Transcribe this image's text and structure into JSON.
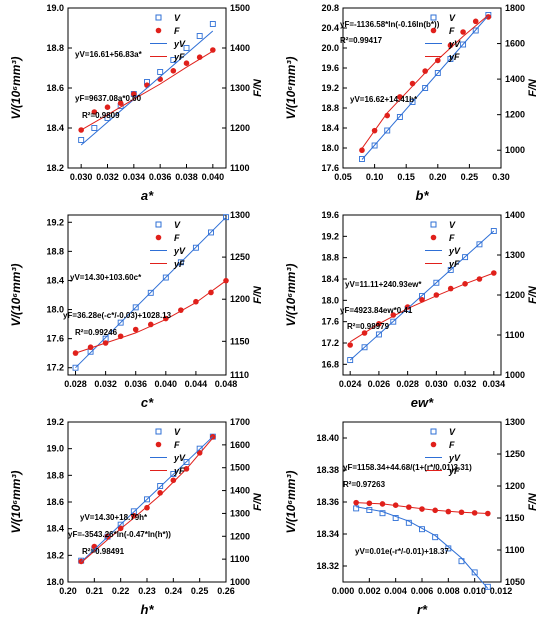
{
  "colors": {
    "v": "#2e6fd6",
    "f": "#e0201b",
    "axis": "#000000"
  },
  "chart_data": [
    {
      "type": "scatter",
      "xlabel": "a*",
      "ylabel_left": "V/(10⁶mm³)",
      "ylabel_right": "F/N",
      "xlim": [
        0.029,
        0.041
      ],
      "xticks": [
        "0.030",
        "0.032",
        "0.034",
        "0.036",
        "0.038",
        "0.040"
      ],
      "ylim_left": [
        18.2,
        19.0
      ],
      "yticks_left": [
        "18.2",
        "18.4",
        "18.6",
        "18.8",
        "19.0"
      ],
      "ylim_right": [
        1100,
        1500
      ],
      "yticks_right": [
        "1100",
        "1200",
        "1300",
        "1400",
        "1500"
      ],
      "legend": [
        "V",
        "F",
        "yV",
        "yF"
      ],
      "series": [
        {
          "name": "V",
          "marker": "square",
          "axis": "left",
          "x": [
            0.03,
            0.031,
            0.032,
            0.033,
            0.034,
            0.035,
            0.036,
            0.037,
            0.038,
            0.039,
            0.04
          ],
          "y": [
            18.34,
            18.4,
            18.45,
            18.51,
            18.57,
            18.63,
            18.68,
            18.74,
            18.8,
            18.86,
            18.92
          ]
        },
        {
          "name": "F",
          "marker": "circle",
          "axis": "right",
          "x": [
            0.03,
            0.031,
            0.032,
            0.033,
            0.034,
            0.035,
            0.036,
            0.037,
            0.038,
            0.039,
            0.04
          ],
          "y": [
            1195,
            1240,
            1252,
            1262,
            1285,
            1307,
            1322,
            1343,
            1362,
            1377,
            1395
          ]
        },
        {
          "name": "yV",
          "type": "line",
          "axis": "left",
          "x": [
            0.03,
            0.04
          ],
          "y": [
            18.315,
            18.885
          ]
        },
        {
          "name": "yF",
          "type": "line",
          "axis": "right",
          "x": [
            0.03,
            0.032,
            0.034,
            0.036,
            0.038,
            0.04
          ],
          "y": [
            1195,
            1233,
            1272,
            1310,
            1352,
            1392
          ]
        }
      ],
      "annotations": [
        "yV=16.61+56.83a*",
        "yF=9637.08a*0.60",
        "R²=0.9809"
      ]
    },
    {
      "type": "scatter",
      "xlabel": "b*",
      "ylabel_left": "V/(10⁶mm³)",
      "ylabel_right": "F/N",
      "xlim": [
        0.05,
        0.3
      ],
      "xticks": [
        "0.05",
        "0.10",
        "0.15",
        "0.20",
        "0.25",
        "0.30"
      ],
      "ylim_left": [
        17.6,
        20.8
      ],
      "yticks_left": [
        "17.6",
        "18.0",
        "18.4",
        "18.8",
        "19.2",
        "19.6",
        "20.0",
        "20.4",
        "20.8"
      ],
      "ylim_right": [
        900,
        1800
      ],
      "yticks_right": [
        "1000",
        "1200",
        "1400",
        "1600",
        "1800"
      ],
      "legend": [
        "V",
        "F",
        "yV",
        "yF"
      ],
      "series": [
        {
          "name": "V",
          "marker": "square",
          "axis": "left",
          "x": [
            0.08,
            0.1,
            0.12,
            0.14,
            0.16,
            0.18,
            0.2,
            0.22,
            0.24,
            0.26,
            0.28
          ],
          "y": [
            17.78,
            18.05,
            18.35,
            18.62,
            18.92,
            19.2,
            19.5,
            19.78,
            20.07,
            20.35,
            20.66
          ]
        },
        {
          "name": "F",
          "marker": "circle",
          "axis": "right",
          "x": [
            0.08,
            0.1,
            0.12,
            0.14,
            0.16,
            0.18,
            0.2,
            0.22,
            0.24,
            0.26,
            0.28
          ],
          "y": [
            1000,
            1110,
            1195,
            1300,
            1375,
            1445,
            1505,
            1590,
            1665,
            1725,
            1750
          ]
        },
        {
          "name": "yV",
          "type": "line",
          "axis": "left",
          "x": [
            0.08,
            0.28
          ],
          "y": [
            17.77,
            20.65
          ]
        },
        {
          "name": "yF",
          "type": "line",
          "axis": "right",
          "x": [
            0.08,
            0.12,
            0.16,
            0.2,
            0.24,
            0.28
          ],
          "y": [
            1010,
            1210,
            1360,
            1510,
            1640,
            1760
          ]
        }
      ],
      "annotations": [
        "yF=-1136.58*ln(-0.16ln(b*))",
        "R²=0.99417",
        "yV=16.62+14.41b*"
      ]
    },
    {
      "type": "scatter",
      "xlabel": "c*",
      "ylabel_left": "V/(10⁶mm³)",
      "ylabel_right": "F/N",
      "xlim": [
        0.027,
        0.048
      ],
      "xticks": [
        "0.028",
        "0.032",
        "0.036",
        "0.040",
        "0.044",
        "0.048"
      ],
      "ylim_left": [
        17.1,
        19.3
      ],
      "yticks_left": [
        "17.2",
        "17.6",
        "18.0",
        "18.4",
        "18.8",
        "19.2"
      ],
      "ylim_right": [
        1110,
        1300
      ],
      "yticks_right": [
        "1110",
        "1150",
        "1200",
        "1250",
        "1300"
      ],
      "legend": [
        "V",
        "F",
        "yV",
        "yF"
      ],
      "series": [
        {
          "name": "V",
          "marker": "square",
          "axis": "left",
          "x": [
            0.028,
            0.03,
            0.032,
            0.034,
            0.036,
            0.038,
            0.04,
            0.042,
            0.044,
            0.046,
            0.048
          ],
          "y": [
            17.2,
            17.42,
            17.6,
            17.82,
            18.03,
            18.23,
            18.44,
            18.65,
            18.85,
            19.06,
            19.27
          ]
        },
        {
          "name": "F",
          "marker": "circle",
          "axis": "right",
          "x": [
            0.028,
            0.03,
            0.032,
            0.034,
            0.036,
            0.038,
            0.04,
            0.042,
            0.044,
            0.046,
            0.048
          ],
          "y": [
            1136,
            1143,
            1148,
            1156,
            1164,
            1170,
            1177,
            1187,
            1197,
            1208,
            1222
          ]
        },
        {
          "name": "yV",
          "type": "line",
          "axis": "left",
          "x": [
            0.028,
            0.048
          ],
          "y": [
            17.2,
            19.27
          ]
        },
        {
          "name": "yF",
          "type": "line",
          "axis": "right",
          "x": [
            0.028,
            0.032,
            0.036,
            0.04,
            0.044,
            0.048
          ],
          "y": [
            1136,
            1148,
            1160,
            1176,
            1196,
            1222
          ]
        }
      ],
      "annotations": [
        "yV=14.30+103.60c*",
        "yF=36.28e(-c*/-0.03)+1028.13",
        "R²=0.99246"
      ]
    },
    {
      "type": "scatter",
      "xlabel": "ew*",
      "ylabel_left": "V/(10⁶mm³)",
      "ylabel_right": "F/N",
      "xlim": [
        0.0235,
        0.0345
      ],
      "xticks": [
        "0.024",
        "0.026",
        "0.028",
        "0.030",
        "0.032",
        "0.034"
      ],
      "ylim_left": [
        16.6,
        19.6
      ],
      "yticks_left": [
        "16.8",
        "17.2",
        "17.6",
        "18.0",
        "18.4",
        "18.8",
        "19.2",
        "19.6"
      ],
      "ylim_right": [
        1000,
        1400
      ],
      "yticks_right": [
        "1000",
        "1100",
        "1200",
        "1300",
        "1400"
      ],
      "legend": [
        "V",
        "F",
        "yV",
        "yF"
      ],
      "series": [
        {
          "name": "V",
          "marker": "square",
          "axis": "left",
          "x": [
            0.024,
            0.025,
            0.026,
            0.027,
            0.028,
            0.029,
            0.03,
            0.031,
            0.032,
            0.033,
            0.034
          ],
          "y": [
            16.88,
            17.12,
            17.36,
            17.6,
            17.84,
            18.08,
            18.33,
            18.57,
            18.81,
            19.05,
            19.3
          ]
        },
        {
          "name": "F",
          "marker": "circle",
          "axis": "right",
          "x": [
            0.024,
            0.025,
            0.026,
            0.027,
            0.028,
            0.029,
            0.03,
            0.031,
            0.032,
            0.033,
            0.034
          ],
          "y": [
            1075,
            1105,
            1128,
            1150,
            1170,
            1188,
            1200,
            1216,
            1228,
            1240,
            1255
          ]
        },
        {
          "name": "yV",
          "type": "line",
          "axis": "left",
          "x": [
            0.024,
            0.034
          ],
          "y": [
            16.88,
            19.3
          ]
        },
        {
          "name": "yF",
          "type": "line",
          "axis": "right",
          "x": [
            0.024,
            0.026,
            0.028,
            0.03,
            0.032,
            0.034
          ],
          "y": [
            1083,
            1128,
            1166,
            1198,
            1228,
            1255
          ]
        }
      ],
      "annotations": [
        "yV=11.11+240.93ew*",
        "yF=4923.84ew*0.41",
        "R²=0.98979"
      ]
    },
    {
      "type": "scatter",
      "xlabel": "h*",
      "ylabel_left": "V/(10⁶mm³)",
      "ylabel_right": "F/N",
      "xlim": [
        0.2,
        0.26
      ],
      "xticks": [
        "0.20",
        "0.21",
        "0.22",
        "0.23",
        "0.24",
        "0.25",
        "0.26"
      ],
      "ylim_left": [
        18.0,
        19.2
      ],
      "yticks_left": [
        "18.0",
        "18.2",
        "18.4",
        "18.6",
        "18.8",
        "19.0",
        "19.2"
      ],
      "ylim_right": [
        1000,
        1700
      ],
      "yticks_right": [
        "1000",
        "1100",
        "1200",
        "1300",
        "1400",
        "1500",
        "1600",
        "1700"
      ],
      "legend": [
        "V",
        "F",
        "yV",
        "yF"
      ],
      "series": [
        {
          "name": "V",
          "marker": "square",
          "axis": "left",
          "x": [
            0.205,
            0.21,
            0.215,
            0.22,
            0.225,
            0.23,
            0.235,
            0.24,
            0.245,
            0.25,
            0.255
          ],
          "y": [
            18.16,
            18.25,
            18.34,
            18.43,
            18.53,
            18.62,
            18.72,
            18.81,
            18.9,
            19.0,
            19.09
          ]
        },
        {
          "name": "F",
          "marker": "circle",
          "axis": "right",
          "x": [
            0.205,
            0.21,
            0.215,
            0.22,
            0.225,
            0.23,
            0.235,
            0.24,
            0.245,
            0.25,
            0.255
          ],
          "y": [
            1090,
            1155,
            1200,
            1235,
            1290,
            1325,
            1390,
            1445,
            1495,
            1565,
            1635
          ]
        },
        {
          "name": "yV",
          "type": "line",
          "axis": "left",
          "x": [
            0.205,
            0.255
          ],
          "y": [
            18.15,
            19.09
          ]
        },
        {
          "name": "yF",
          "type": "line",
          "axis": "right",
          "x": [
            0.205,
            0.215,
            0.225,
            0.235,
            0.245,
            0.255
          ],
          "y": [
            1085,
            1185,
            1280,
            1380,
            1495,
            1630
          ]
        }
      ],
      "annotations": [
        "yV=14.30+18.79h*",
        "yF=-3543.26*ln(-0.47*ln(h*))",
        "R²=0.98491"
      ]
    },
    {
      "type": "scatter",
      "xlabel": "r*",
      "ylabel_left": "V/(10⁶mm³)",
      "ylabel_right": "F/N",
      "xlim": [
        0.0,
        0.012
      ],
      "xticks": [
        "0.000",
        "0.002",
        "0.004",
        "0.006",
        "0.008",
        "0.010",
        "0.012"
      ],
      "ylim_left": [
        18.31,
        18.41
      ],
      "yticks_left": [
        "18.32",
        "18.34",
        "18.36",
        "18.38",
        "18.40"
      ],
      "ylim_right": [
        1050,
        1300
      ],
      "yticks_right": [
        "1050",
        "1100",
        "1150",
        "1200",
        "1250",
        "1300"
      ],
      "legend": [
        "V",
        "F",
        "yV",
        "yF"
      ],
      "series": [
        {
          "name": "V",
          "marker": "square",
          "axis": "left",
          "x": [
            0.001,
            0.002,
            0.003,
            0.004,
            0.005,
            0.006,
            0.007,
            0.008,
            0.009,
            0.01,
            0.011
          ],
          "y": [
            18.356,
            18.355,
            18.353,
            18.35,
            18.347,
            18.343,
            18.338,
            18.331,
            18.323,
            18.316,
            18.307
          ]
        },
        {
          "name": "F",
          "marker": "circle",
          "axis": "right",
          "x": [
            0.001,
            0.002,
            0.003,
            0.004,
            0.005,
            0.006,
            0.007,
            0.008,
            0.009,
            0.01,
            0.011
          ],
          "y": [
            1174,
            1173,
            1172,
            1170,
            1167,
            1164,
            1162,
            1160,
            1159,
            1158,
            1157
          ]
        },
        {
          "name": "yV",
          "type": "line",
          "axis": "left",
          "x": [
            0.001,
            0.003,
            0.005,
            0.007,
            0.009,
            0.011
          ],
          "y": [
            18.357,
            18.354,
            18.348,
            18.339,
            18.325,
            18.306
          ]
        },
        {
          "name": "yF",
          "type": "line",
          "axis": "right",
          "x": [
            0.001,
            0.003,
            0.005,
            0.007,
            0.009,
            0.011
          ],
          "y": [
            1174,
            1172,
            1167,
            1162,
            1159,
            1157
          ]
        }
      ],
      "annotations": [
        "yF=1158.34+44.68/(1+(r*/0.01)3.31)",
        "R²=0.97263",
        "yV=0.01e(-r*/-0.01)+18.37"
      ]
    }
  ]
}
